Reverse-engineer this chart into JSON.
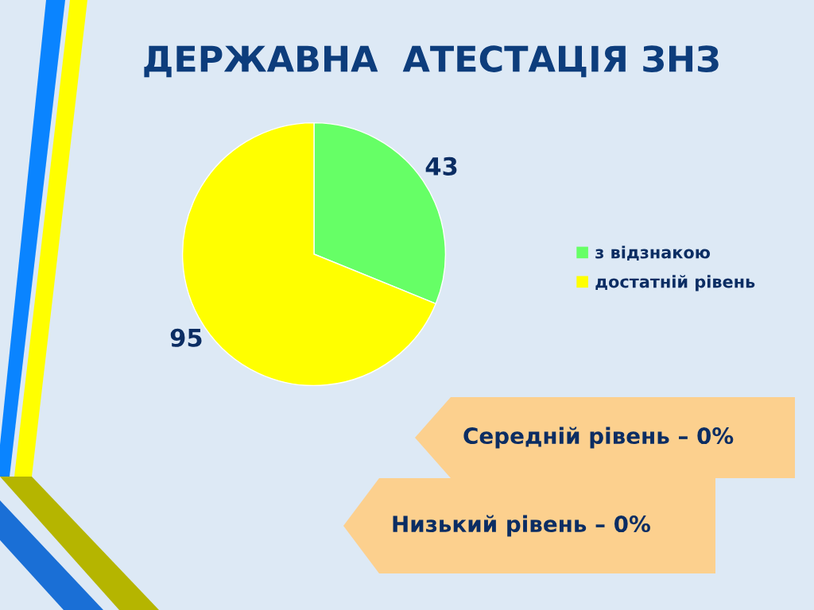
{
  "chart_data": {
    "type": "pie",
    "title": "ДЕРЖАВНА  АТЕСТАЦІЯ ЗНЗ",
    "categories": [
      "з відзнакою",
      "достатній рівень"
    ],
    "values": [
      43,
      95
    ],
    "colors": [
      "#66ff66",
      "#ffff00"
    ],
    "data_labels": true,
    "legend": "right",
    "annotations": [
      "Середній рівень – 0%",
      "Низький рівень – 0%"
    ]
  }
}
